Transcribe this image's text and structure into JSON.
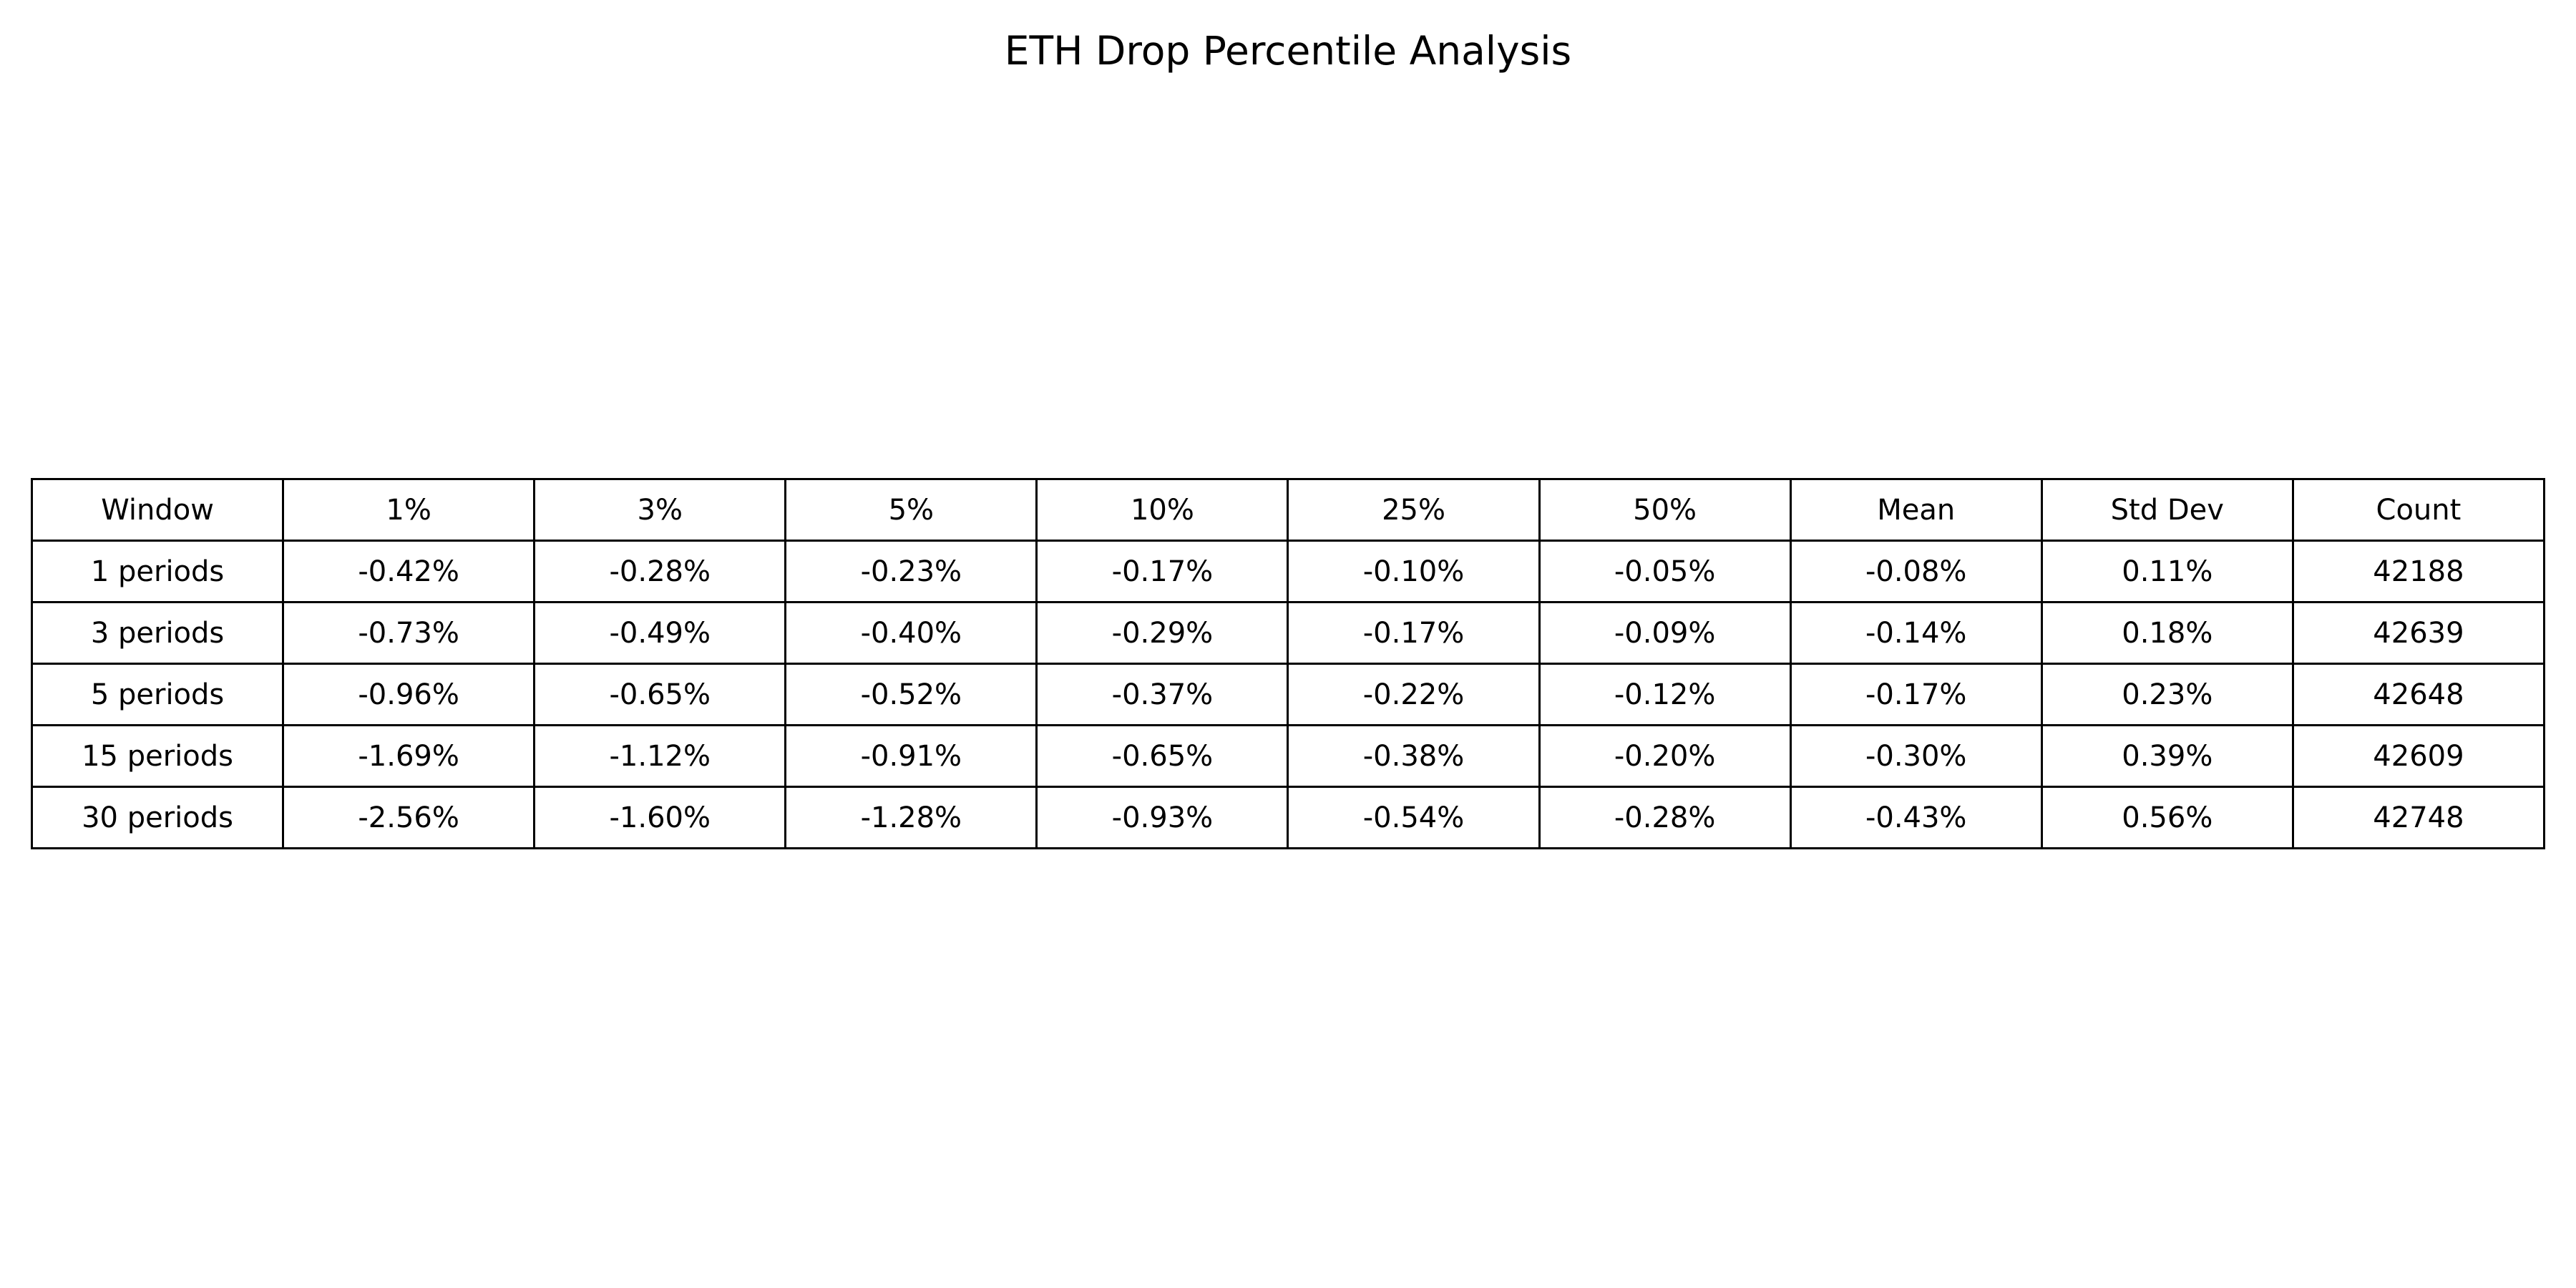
{
  "chart_data": {
    "type": "table",
    "title": "ETH Drop Percentile Analysis",
    "columns": [
      "Window",
      "1%",
      "3%",
      "5%",
      "10%",
      "25%",
      "50%",
      "Mean",
      "Std Dev",
      "Count"
    ],
    "rows": [
      [
        "1 periods",
        "-0.42%",
        "-0.28%",
        "-0.23%",
        "-0.17%",
        "-0.10%",
        "-0.05%",
        "-0.08%",
        "0.11%",
        "42188"
      ],
      [
        "3 periods",
        "-0.73%",
        "-0.49%",
        "-0.40%",
        "-0.29%",
        "-0.17%",
        "-0.09%",
        "-0.14%",
        "0.18%",
        "42639"
      ],
      [
        "5 periods",
        "-0.96%",
        "-0.65%",
        "-0.52%",
        "-0.37%",
        "-0.22%",
        "-0.12%",
        "-0.17%",
        "0.23%",
        "42648"
      ],
      [
        "15 periods",
        "-1.69%",
        "-1.12%",
        "-0.91%",
        "-0.65%",
        "-0.38%",
        "-0.20%",
        "-0.30%",
        "0.39%",
        "42609"
      ],
      [
        "30 periods",
        "-2.56%",
        "-1.60%",
        "-1.28%",
        "-0.93%",
        "-0.54%",
        "-0.28%",
        "-0.43%",
        "0.56%",
        "42748"
      ]
    ]
  }
}
